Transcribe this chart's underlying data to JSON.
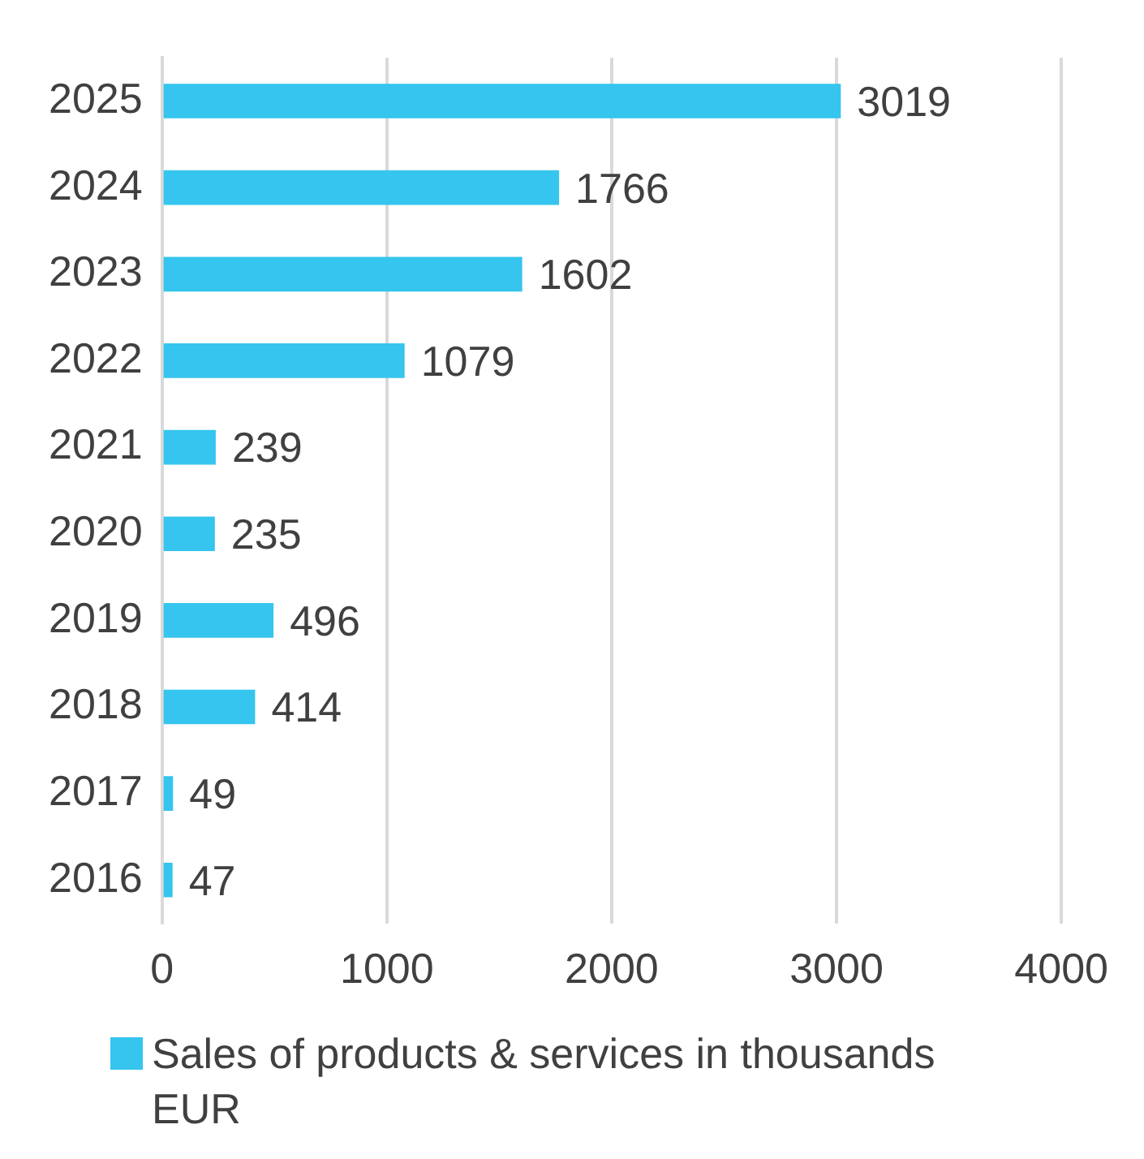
{
  "chart_data": {
    "type": "bar",
    "orientation": "horizontal",
    "categories": [
      "2025",
      "2024",
      "2023",
      "2022",
      "2021",
      "2020",
      "2019",
      "2018",
      "2017",
      "2016"
    ],
    "series": [
      {
        "name": "Sales of products & services in thousands EUR",
        "color": "#35c5ee",
        "values": [
          3019,
          1766,
          1602,
          1079,
          239,
          235,
          496,
          414,
          49,
          47
        ]
      }
    ],
    "xlim": [
      0,
      4000
    ],
    "xticks": [
      0,
      1000,
      2000,
      3000,
      4000
    ],
    "grid": "x",
    "legend": "bottom",
    "data_labels": true
  }
}
